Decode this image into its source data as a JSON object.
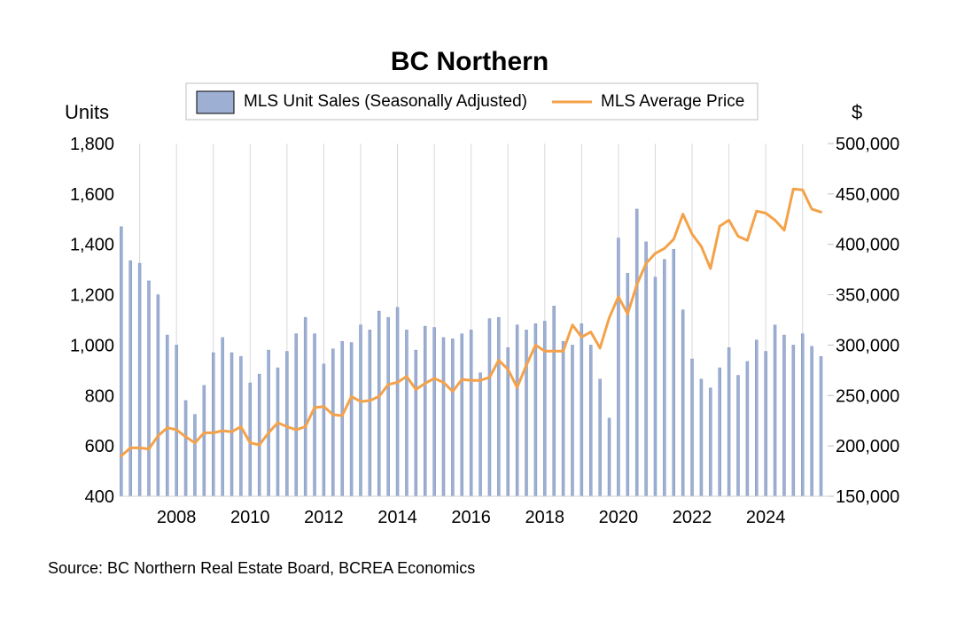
{
  "chart_data": {
    "type": "bar",
    "title": "BC Northern",
    "left_axis_label": "Units",
    "right_axis_label": "$",
    "source": "Source:  BC Northern Real Estate Board, BCREA Economics",
    "colors": {
      "bars": "#9DAFD3",
      "bar_edge": "#7F93BE",
      "line": "#F4A24A",
      "grid": "#D9D9D9"
    },
    "left_axis": {
      "min": 400,
      "max": 1800,
      "ticks": [
        "400",
        "600",
        "800",
        "1,000",
        "1,200",
        "1,400",
        "1,600",
        "1,800"
      ]
    },
    "right_axis": {
      "min": 150000,
      "max": 500000,
      "ticks": [
        "150,000",
        "200,000",
        "250,000",
        "300,000",
        "350,000",
        "400,000",
        "450,000",
        "500,000"
      ]
    },
    "x_axis": {
      "start": "2006 Q3",
      "end": "2025 Q3",
      "tick_labels": [
        "2008",
        "2010",
        "2012",
        "2014",
        "2016",
        "2018",
        "2020",
        "2022",
        "2024"
      ],
      "grid_years": [
        "2007",
        "2008",
        "2009",
        "2010",
        "2011",
        "2012",
        "2013",
        "2014",
        "2015",
        "2016",
        "2017",
        "2018",
        "2019",
        "2020",
        "2021",
        "2022",
        "2023",
        "2024",
        "2025"
      ]
    },
    "grid": true,
    "legend": {
      "position": "top",
      "items": [
        {
          "label": "MLS Unit Sales (Seasonally Adjusted)",
          "type": "bar"
        },
        {
          "label": "MLS Average Price",
          "type": "line"
        }
      ]
    },
    "series": [
      {
        "name": "MLS Unit Sales (Seasonally Adjusted)",
        "type": "bar",
        "axis": "left",
        "periods": [
          "2006 Q3",
          "2006 Q4",
          "2007 Q1",
          "2007 Q2",
          "2007 Q3",
          "2007 Q4",
          "2008 Q1",
          "2008 Q2",
          "2008 Q3",
          "2008 Q4",
          "2009 Q1",
          "2009 Q2",
          "2009 Q3",
          "2009 Q4",
          "2010 Q1",
          "2010 Q2",
          "2010 Q3",
          "2010 Q4",
          "2011 Q1",
          "2011 Q2",
          "2011 Q3",
          "2011 Q4",
          "2012 Q1",
          "2012 Q2",
          "2012 Q3",
          "2012 Q4",
          "2013 Q1",
          "2013 Q2",
          "2013 Q3",
          "2013 Q4",
          "2014 Q1",
          "2014 Q2",
          "2014 Q3",
          "2014 Q4",
          "2015 Q1",
          "2015 Q2",
          "2015 Q3",
          "2015 Q4",
          "2016 Q1",
          "2016 Q2",
          "2016 Q3",
          "2016 Q4",
          "2017 Q1",
          "2017 Q2",
          "2017 Q3",
          "2017 Q4",
          "2018 Q1",
          "2018 Q2",
          "2018 Q3",
          "2018 Q4",
          "2019 Q1",
          "2019 Q2",
          "2019 Q3",
          "2019 Q4",
          "2020 Q1",
          "2020 Q2",
          "2020 Q3",
          "2020 Q4",
          "2021 Q1",
          "2021 Q2",
          "2021 Q3",
          "2021 Q4",
          "2022 Q1",
          "2022 Q2",
          "2022 Q3",
          "2022 Q4",
          "2023 Q1",
          "2023 Q2",
          "2023 Q3",
          "2023 Q4",
          "2024 Q1",
          "2024 Q2",
          "2024 Q3",
          "2024 Q4",
          "2025 Q1",
          "2025 Q2",
          "2025 Q3"
        ],
        "values": [
          1470,
          1335,
          1325,
          1255,
          1200,
          1040,
          1000,
          780,
          725,
          840,
          970,
          1030,
          970,
          955,
          850,
          885,
          980,
          910,
          975,
          1045,
          1110,
          1045,
          925,
          985,
          1015,
          1010,
          1080,
          1060,
          1135,
          1110,
          1150,
          1060,
          980,
          1075,
          1070,
          1030,
          1025,
          1045,
          1060,
          890,
          1105,
          1110,
          990,
          1080,
          1060,
          1085,
          1095,
          1155,
          1015,
          1000,
          1085,
          1000,
          865,
          710,
          1425,
          1285,
          1540,
          1410,
          1270,
          1340,
          1380,
          1140,
          945,
          865,
          830,
          910,
          990,
          880,
          935,
          1020,
          975,
          1080,
          1040,
          1000,
          1045,
          995,
          955
        ]
      },
      {
        "name": "MLS Average Price",
        "type": "line",
        "axis": "right",
        "periods": [
          "2006 Q3",
          "2006 Q4",
          "2007 Q1",
          "2007 Q2",
          "2007 Q3",
          "2007 Q4",
          "2008 Q1",
          "2008 Q2",
          "2008 Q3",
          "2008 Q4",
          "2009 Q1",
          "2009 Q2",
          "2009 Q3",
          "2009 Q4",
          "2010 Q1",
          "2010 Q2",
          "2010 Q3",
          "2010 Q4",
          "2011 Q1",
          "2011 Q2",
          "2011 Q3",
          "2011 Q4",
          "2012 Q1",
          "2012 Q2",
          "2012 Q3",
          "2012 Q4",
          "2013 Q1",
          "2013 Q2",
          "2013 Q3",
          "2013 Q4",
          "2014 Q1",
          "2014 Q2",
          "2014 Q3",
          "2014 Q4",
          "2015 Q1",
          "2015 Q2",
          "2015 Q3",
          "2015 Q4",
          "2016 Q1",
          "2016 Q2",
          "2016 Q3",
          "2016 Q4",
          "2017 Q1",
          "2017 Q2",
          "2017 Q3",
          "2017 Q4",
          "2018 Q1",
          "2018 Q2",
          "2018 Q3",
          "2018 Q4",
          "2019 Q1",
          "2019 Q2",
          "2019 Q3",
          "2019 Q4",
          "2020 Q1",
          "2020 Q2",
          "2020 Q3",
          "2020 Q4",
          "2021 Q1",
          "2021 Q2",
          "2021 Q3",
          "2021 Q4",
          "2022 Q1",
          "2022 Q2",
          "2022 Q3",
          "2022 Q4",
          "2023 Q1",
          "2023 Q2",
          "2023 Q3",
          "2023 Q4",
          "2024 Q1",
          "2024 Q2",
          "2024 Q3",
          "2024 Q4",
          "2025 Q1",
          "2025 Q2",
          "2025 Q3"
        ],
        "values": [
          190000,
          198000,
          198000,
          197000,
          210000,
          218000,
          216000,
          209000,
          203000,
          213000,
          213000,
          215000,
          214000,
          219000,
          203000,
          201000,
          213000,
          223000,
          219000,
          216000,
          219000,
          238000,
          239000,
          231000,
          230000,
          249000,
          244000,
          245000,
          249000,
          261000,
          263000,
          269000,
          256000,
          262000,
          267000,
          263000,
          254000,
          266000,
          265000,
          265000,
          268000,
          285000,
          276000,
          258000,
          280000,
          300000,
          294000,
          294000,
          294000,
          320000,
          308000,
          313000,
          297000,
          327000,
          348000,
          331000,
          360000,
          381000,
          391000,
          396000,
          405000,
          430000,
          410000,
          398000,
          376000,
          418000,
          424000,
          408000,
          404000,
          433000,
          431000,
          424000,
          414000,
          455000,
          454000,
          435000,
          432000
        ]
      }
    ]
  }
}
